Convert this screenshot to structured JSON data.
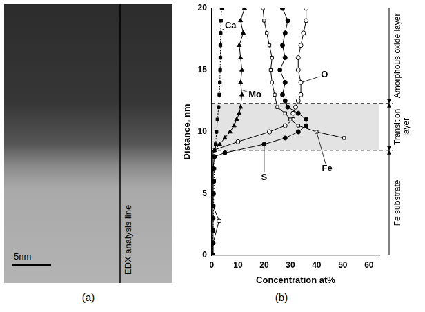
{
  "image_panel": {
    "caption": "(a)",
    "scale_bar_label": "5nm",
    "line_label": "EDX analysis line"
  },
  "chart_data": {
    "type": "line",
    "caption": "(b)",
    "x_label": "Concentration at%",
    "y_label": "Distance, nm",
    "xlim": [
      0,
      64
    ],
    "xticks": [
      0,
      10,
      20,
      30,
      40,
      50,
      60
    ],
    "ylim": [
      0,
      20
    ],
    "yticks": [
      0,
      5,
      10,
      15,
      20
    ],
    "grid": false,
    "layers": [
      {
        "label": "Amorphous oxide layer",
        "range": [
          12.3,
          20
        ]
      },
      {
        "label": "Transition layer",
        "range": [
          8.5,
          12.3
        ]
      },
      {
        "label": "Fe substrate",
        "range": [
          0,
          8.5
        ]
      }
    ],
    "series": [
      {
        "name": "Ca",
        "color": "#000000",
        "marker": "square",
        "line_style": "dotted",
        "x": [
          0.3,
          0.4,
          0.5,
          0.6,
          0.7,
          0.8,
          0.9,
          1.0,
          1.2,
          1.5,
          1.8,
          2.2,
          2.6,
          2.9,
          3.1,
          3.2,
          3.3,
          3.3,
          3.4,
          3.5,
          3.8
        ],
        "y": [
          0,
          1,
          2,
          3,
          4,
          5,
          6,
          7,
          8,
          9,
          10,
          11,
          12,
          13,
          14,
          15,
          16,
          17,
          18,
          19,
          20
        ]
      },
      {
        "name": "Mo",
        "color": "#000000",
        "marker": "triangle",
        "line_style": "solid",
        "x": [
          1,
          3,
          5,
          7,
          8.5,
          9.5,
          10.5,
          11,
          11.5,
          11,
          11.5,
          11,
          10.5,
          12,
          11,
          12.5
        ],
        "y": [
          8.5,
          9,
          9.5,
          10,
          10.5,
          11,
          11.5,
          12,
          13,
          14,
          15,
          16,
          17,
          18,
          19,
          20
        ]
      },
      {
        "name": "S",
        "color": "#000000",
        "marker": "circle",
        "line_style": "solid",
        "x": [
          0.5,
          0.5,
          0.5,
          0.5,
          0.5,
          0.5,
          0.5,
          0.5,
          1,
          5,
          20,
          28,
          33,
          36,
          36,
          33,
          29,
          28,
          27,
          28,
          26,
          28,
          27,
          28,
          29,
          27
        ],
        "y": [
          0,
          1,
          2,
          3,
          4,
          5,
          6,
          7,
          8,
          8.3,
          9,
          9.5,
          10,
          10.5,
          11,
          11.5,
          12,
          12.5,
          13,
          14,
          15,
          16,
          17,
          18,
          19,
          20
        ]
      },
      {
        "name": "Fe",
        "color": "#000000",
        "marker": "open_square",
        "line_style": "solid",
        "x": [
          50.5,
          40,
          33,
          30,
          28,
          25,
          24,
          23,
          22.5,
          23,
          22,
          21,
          20,
          19.5
        ],
        "y": [
          9.5,
          10,
          10.5,
          11,
          11.5,
          12,
          13,
          14,
          15,
          16,
          17,
          18,
          19,
          20
        ]
      },
      {
        "name": "O",
        "color": "#000000",
        "marker": "open_circle",
        "line_style": "solid",
        "x": [
          0.5,
          0.5,
          2.8,
          0.5,
          0.5,
          0.5,
          0.5,
          0.5,
          0.5,
          10,
          22,
          28,
          31,
          31,
          32,
          33,
          34,
          34,
          33,
          33,
          34,
          35,
          36,
          36
        ],
        "y": [
          0,
          1,
          2.8,
          4,
          5,
          6,
          7,
          8,
          8.5,
          9.2,
          10,
          10.5,
          11,
          11.5,
          12,
          12.5,
          13,
          14,
          15,
          16,
          17,
          18,
          19,
          20
        ]
      }
    ]
  }
}
